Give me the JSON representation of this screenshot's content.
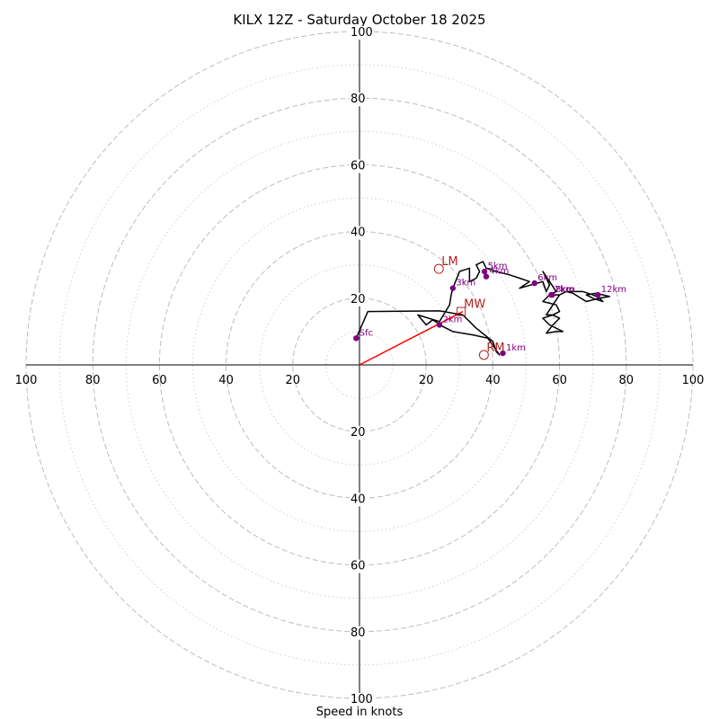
{
  "chart_data": {
    "type": "scatter",
    "title": "KILX 12Z - Saturday October 18 2025",
    "xlabel": "Speed in knots",
    "ylabel": "",
    "xlim": [
      -100,
      100
    ],
    "ylim": [
      -100,
      100
    ],
    "ring_major": [
      20,
      40,
      60,
      80,
      100
    ],
    "ring_minor": [
      10,
      30,
      50,
      70,
      90
    ],
    "tick_labels": [
      "100",
      "80",
      "60",
      "40",
      "20",
      "20",
      "40",
      "60",
      "80",
      "100"
    ],
    "axis_ticks_x": [
      {
        "v": -100,
        "label": "100"
      },
      {
        "v": -80,
        "label": "80"
      },
      {
        "v": -60,
        "label": "60"
      },
      {
        "v": -40,
        "label": "40"
      },
      {
        "v": -20,
        "label": "20"
      },
      {
        "v": 20,
        "label": "20"
      },
      {
        "v": 40,
        "label": "40"
      },
      {
        "v": 60,
        "label": "60"
      },
      {
        "v": 80,
        "label": "80"
      },
      {
        "v": 100,
        "label": "100"
      }
    ],
    "axis_ticks_y": [
      {
        "v": 100,
        "label": "100"
      },
      {
        "v": 80,
        "label": "80"
      },
      {
        "v": 60,
        "label": "60"
      },
      {
        "v": 40,
        "label": "40"
      },
      {
        "v": 20,
        "label": "20"
      },
      {
        "v": -20,
        "label": "20"
      },
      {
        "v": -40,
        "label": "40"
      },
      {
        "v": -60,
        "label": "60"
      },
      {
        "v": -80,
        "label": "80"
      },
      {
        "v": -100,
        "label": "100"
      }
    ],
    "hodograph_trace": [
      [
        -1,
        8
      ],
      [
        2.5,
        16
      ],
      [
        24,
        16.2
      ],
      [
        31,
        15
      ],
      [
        35,
        11
      ],
      [
        40,
        7
      ],
      [
        41,
        4
      ],
      [
        42,
        3
      ],
      [
        38.5,
        8
      ],
      [
        34,
        9
      ],
      [
        28,
        10
      ],
      [
        25,
        11.5
      ],
      [
        22,
        13.5
      ],
      [
        20,
        12
      ],
      [
        17.5,
        15
      ],
      [
        24,
        13
      ],
      [
        27,
        18
      ],
      [
        27.5,
        21
      ],
      [
        28,
        23
      ],
      [
        30,
        28
      ],
      [
        33,
        29
      ],
      [
        33,
        25
      ],
      [
        35,
        26
      ],
      [
        36,
        28
      ],
      [
        35,
        30
      ],
      [
        37,
        31
      ],
      [
        38,
        29
      ],
      [
        41,
        28
      ],
      [
        45,
        27
      ],
      [
        48,
        26
      ],
      [
        51,
        25
      ],
      [
        48,
        23
      ],
      [
        55,
        25
      ],
      [
        56,
        22
      ],
      [
        57,
        24
      ],
      [
        55,
        28
      ],
      [
        57,
        25
      ],
      [
        59,
        22
      ],
      [
        57,
        21
      ],
      [
        55,
        19
      ],
      [
        59,
        18
      ],
      [
        60,
        16
      ],
      [
        58,
        15
      ],
      [
        55,
        14
      ],
      [
        57,
        12
      ],
      [
        61,
        10
      ],
      [
        59,
        10
      ],
      [
        56,
        9.5
      ],
      [
        58,
        12
      ],
      [
        60,
        14
      ],
      [
        58,
        15
      ],
      [
        56,
        15
      ],
      [
        58,
        18
      ],
      [
        60,
        21
      ],
      [
        62,
        22
      ],
      [
        67,
        22
      ],
      [
        70,
        21
      ],
      [
        72,
        20
      ],
      [
        73,
        19
      ],
      [
        70,
        20
      ],
      [
        68,
        21
      ],
      [
        71,
        21.5
      ],
      [
        73,
        21
      ],
      [
        75,
        20.5
      ],
      [
        72,
        20
      ],
      [
        68,
        19
      ],
      [
        64,
        21.5
      ],
      [
        62,
        22
      ],
      [
        60,
        21
      ],
      [
        57,
        21
      ]
    ],
    "height_markers": [
      {
        "label": "Sfc",
        "x": -1,
        "y": 8
      },
      {
        "label": "1km",
        "x": 43,
        "y": 3.5
      },
      {
        "label": "2km",
        "x": 24,
        "y": 12
      },
      {
        "label": "3km",
        "x": 28,
        "y": 23
      },
      {
        "label": "4km",
        "x": 38,
        "y": 26.5
      },
      {
        "label": "5km",
        "x": 37.5,
        "y": 28
      },
      {
        "label": "6km",
        "x": 52.5,
        "y": 24.5
      },
      {
        "label": "7km",
        "x": 57.5,
        "y": 21
      },
      {
        "label": "8km",
        "x": 57.8,
        "y": 21
      },
      {
        "label": "12km",
        "x": 71.5,
        "y": 21
      }
    ],
    "storm_motion": {
      "shear_vector": {
        "from": [
          0,
          0
        ],
        "to": [
          31,
          16
        ]
      },
      "markers": [
        {
          "label": "LM",
          "x": 23.8,
          "y": 28.8,
          "shape": "circle"
        },
        {
          "label": "MW",
          "x": 30.5,
          "y": 16,
          "shape": "square"
        },
        {
          "label": "RM",
          "x": 37.3,
          "y": 3,
          "shape": "circle"
        }
      ]
    },
    "colors": {
      "trace": "#000000",
      "height_marker": "#800080",
      "storm_marker": "#b22222",
      "shear_vector": "#ff0000",
      "ring": "#bdbdbd"
    }
  }
}
